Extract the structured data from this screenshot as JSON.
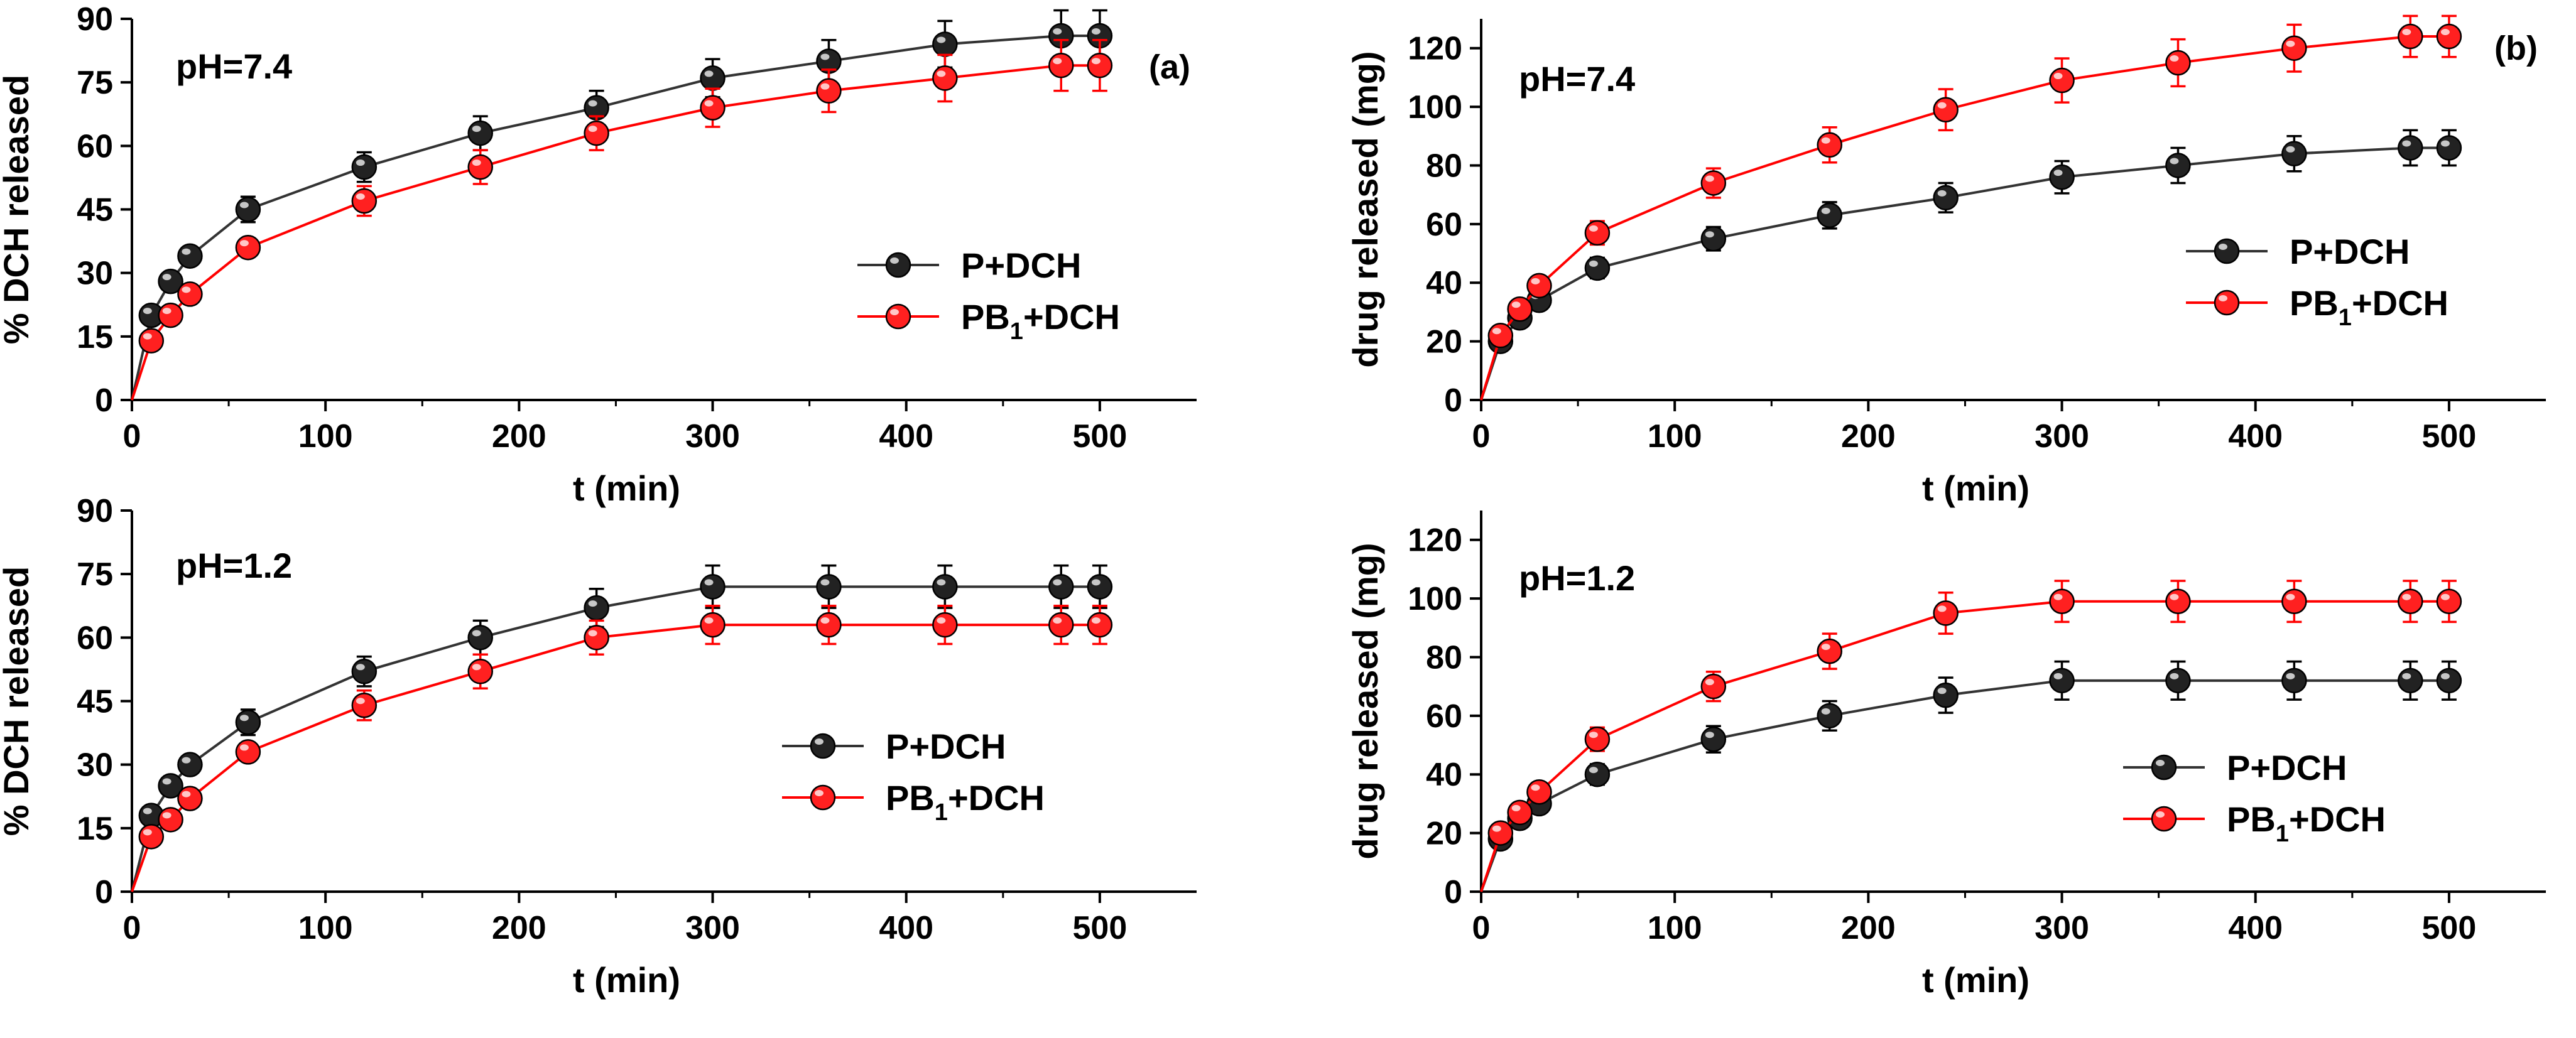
{
  "figure": {
    "panel_tags": [
      "(a)",
      "(b)"
    ]
  },
  "chart_data": [
    {
      "id": "a-top",
      "type": "line",
      "panel_tag": "(a)",
      "annotation": "pH=7.4",
      "xlabel": "t (min)",
      "ylabel": "% DCH released",
      "xlim": [
        0,
        550
      ],
      "ylim": [
        0,
        90
      ],
      "xticks": [
        0,
        100,
        200,
        300,
        400,
        500
      ],
      "yticks": [
        0,
        15,
        30,
        45,
        60,
        75,
        90
      ],
      "legend_position": "center-right",
      "x": [
        0,
        10,
        20,
        30,
        60,
        120,
        180,
        240,
        300,
        360,
        420,
        480,
        500
      ],
      "series": [
        {
          "name": "P+DCH",
          "color": "#000000",
          "values": [
            0,
            20,
            28,
            34,
            45,
            55,
            63,
            69,
            76,
            80,
            84,
            86,
            86
          ],
          "errors": [
            0,
            2,
            2,
            2,
            3,
            3.5,
            4,
            4,
            4.5,
            5,
            5.5,
            6,
            6
          ]
        },
        {
          "name": "PB1+DCH",
          "color": "#ff0000",
          "values": [
            0,
            14,
            20,
            25,
            36,
            47,
            55,
            63,
            69,
            73,
            76,
            79,
            79
          ],
          "errors": [
            0,
            1.5,
            1.5,
            2,
            2,
            3.5,
            4,
            4,
            4.5,
            5,
            5.5,
            6,
            6
          ]
        }
      ]
    },
    {
      "id": "a-bottom",
      "type": "line",
      "annotation": "pH=1.2",
      "xlabel": "t (min)",
      "ylabel": "% DCH released",
      "xlim": [
        0,
        550
      ],
      "ylim": [
        0,
        90
      ],
      "xticks": [
        0,
        100,
        200,
        300,
        400,
        500
      ],
      "yticks": [
        0,
        15,
        30,
        45,
        60,
        75,
        90
      ],
      "legend_position": "lower-right",
      "x": [
        0,
        10,
        20,
        30,
        60,
        120,
        180,
        240,
        300,
        360,
        420,
        480,
        500
      ],
      "series": [
        {
          "name": "P+DCH",
          "color": "#000000",
          "values": [
            0,
            18,
            25,
            30,
            40,
            52,
            60,
            67,
            72,
            72,
            72,
            72,
            72
          ],
          "errors": [
            0,
            1.5,
            2,
            2,
            3,
            3.5,
            4,
            4.5,
            5,
            5,
            5,
            5,
            5
          ]
        },
        {
          "name": "PB1+DCH",
          "color": "#ff0000",
          "values": [
            0,
            13,
            17,
            22,
            33,
            44,
            52,
            60,
            63,
            63,
            63,
            63,
            63
          ],
          "errors": [
            0,
            1.5,
            1.5,
            2,
            2,
            3.5,
            4,
            4,
            4.5,
            4.5,
            4.5,
            4.5,
            4.5
          ]
        }
      ]
    },
    {
      "id": "b-top",
      "type": "line",
      "panel_tag": "(b)",
      "annotation": "pH=7.4",
      "xlabel": "t (min)",
      "ylabel": "drug released (mg)",
      "xlim": [
        0,
        550
      ],
      "ylim": [
        0,
        130
      ],
      "xticks": [
        0,
        100,
        200,
        300,
        400,
        500
      ],
      "yticks": [
        0,
        20,
        40,
        60,
        80,
        100,
        120
      ],
      "legend_position": "center-right",
      "x": [
        0,
        10,
        20,
        30,
        60,
        120,
        180,
        240,
        300,
        360,
        420,
        480,
        500
      ],
      "series": [
        {
          "name": "P+DCH",
          "color": "#000000",
          "values": [
            0,
            20,
            28,
            34,
            45,
            55,
            63,
            69,
            76,
            80,
            84,
            86,
            86
          ],
          "errors": [
            0,
            2.5,
            3,
            3,
            3.5,
            4,
            4.5,
            5,
            5.5,
            6,
            6,
            6,
            6
          ]
        },
        {
          "name": "PB1+DCH",
          "color": "#ff0000",
          "values": [
            0,
            22,
            31,
            39,
            57,
            74,
            87,
            99,
            109,
            115,
            120,
            124,
            124
          ],
          "errors": [
            0,
            2.5,
            3,
            3,
            4,
            5,
            6,
            7,
            7.5,
            8,
            8,
            7,
            7
          ]
        }
      ]
    },
    {
      "id": "b-bottom",
      "type": "line",
      "annotation": "pH=1.2",
      "xlabel": "t (min)",
      "ylabel": "drug released (mg)",
      "xlim": [
        0,
        550
      ],
      "ylim": [
        0,
        130
      ],
      "xticks": [
        0,
        100,
        200,
        300,
        400,
        500
      ],
      "yticks": [
        0,
        20,
        40,
        60,
        80,
        100,
        120
      ],
      "legend_position": "lower-right",
      "x": [
        0,
        10,
        20,
        30,
        60,
        120,
        180,
        240,
        300,
        360,
        420,
        480,
        500
      ],
      "series": [
        {
          "name": "P+DCH",
          "color": "#000000",
          "values": [
            0,
            18,
            25,
            30,
            40,
            52,
            60,
            67,
            72,
            72,
            72,
            72,
            72
          ],
          "errors": [
            0,
            2,
            2.5,
            3,
            3.5,
            4.5,
            5,
            6,
            6.5,
            6.5,
            6.5,
            6.5,
            6.5
          ]
        },
        {
          "name": "PB1+DCH",
          "color": "#ff0000",
          "values": [
            0,
            20,
            27,
            34,
            52,
            70,
            82,
            95,
            99,
            99,
            99,
            99,
            99
          ],
          "errors": [
            0,
            2.5,
            3,
            3,
            4,
            5,
            6,
            7,
            7,
            7,
            7,
            7,
            7
          ]
        }
      ]
    }
  ]
}
